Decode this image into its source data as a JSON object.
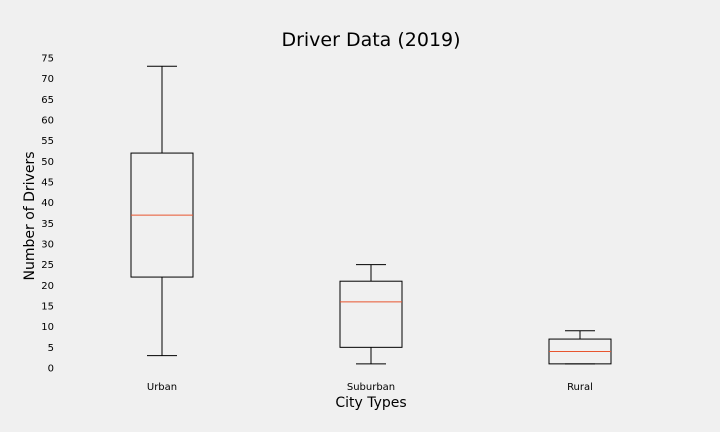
{
  "chart_data": {
    "type": "box",
    "title": "Driver Data (2019)",
    "xlabel": "City Types",
    "ylabel": "Number of Drivers",
    "categories": [
      "Urban",
      "Suburban",
      "Rural"
    ],
    "boxes": [
      {
        "name": "Urban",
        "min": 3,
        "q1": 22,
        "median": 37,
        "q3": 52,
        "max": 73
      },
      {
        "name": "Suburban",
        "min": 1,
        "q1": 5,
        "median": 16,
        "q3": 21,
        "max": 25
      },
      {
        "name": "Rural",
        "min": 1,
        "q1": 1,
        "median": 4,
        "q3": 7,
        "max": 9
      }
    ],
    "yticks": [
      0,
      5,
      10,
      15,
      20,
      25,
      30,
      35,
      40,
      45,
      50,
      55,
      60,
      65,
      70,
      75
    ],
    "ylim": [
      0,
      75
    ],
    "grid": false,
    "colors": {
      "box": "#000000",
      "median": "#e8552f",
      "background": "#f0f0f0"
    }
  }
}
